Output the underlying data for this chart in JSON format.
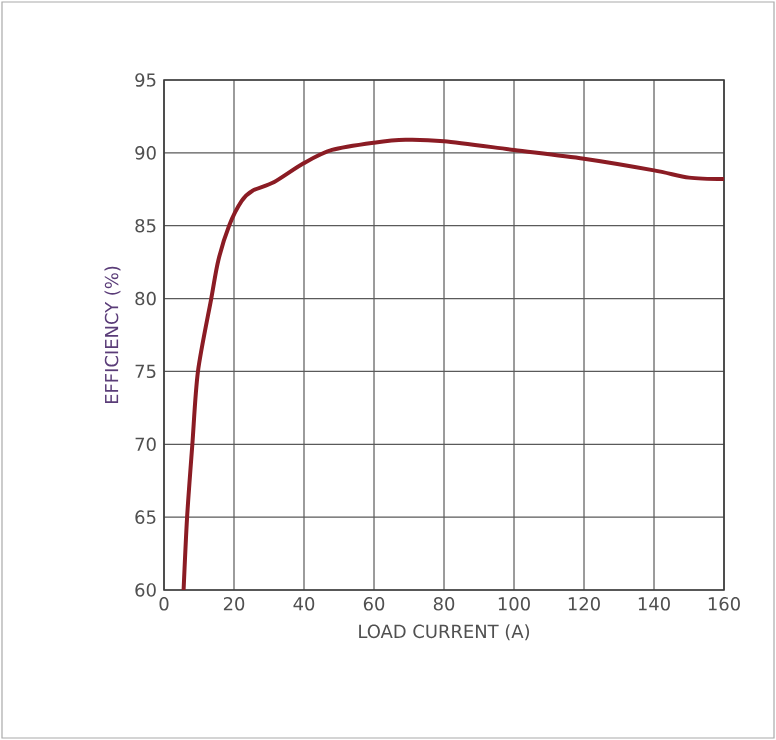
{
  "chart_data": {
    "type": "line",
    "xlabel": "LOAD CURRENT (A)",
    "ylabel": "EFFICIENCY (%)",
    "x": [
      5.6,
      6.6,
      8.1,
      9.7,
      13.5,
      15.5,
      18.6,
      22.2,
      25.3,
      31.5,
      40,
      48,
      60,
      69,
      80,
      100,
      120,
      140,
      150,
      160
    ],
    "series": [
      {
        "color": "#8b1c24",
        "values": [
          60,
          65,
          70,
          75,
          80,
          82.6,
          85,
          86.7,
          87.4,
          88.0,
          89.3,
          90.2,
          90.7,
          90.9,
          90.8,
          90.2,
          89.6,
          88.8,
          88.3,
          88.2
        ]
      }
    ],
    "xlim": [
      0,
      160
    ],
    "ylim": [
      60,
      95
    ],
    "xticks": [
      0,
      20,
      40,
      60,
      80,
      100,
      120,
      140,
      160
    ],
    "yticks": [
      60,
      65,
      70,
      75,
      80,
      85,
      90,
      95
    ],
    "grid": true,
    "marker": "none",
    "line_style": "solid"
  }
}
